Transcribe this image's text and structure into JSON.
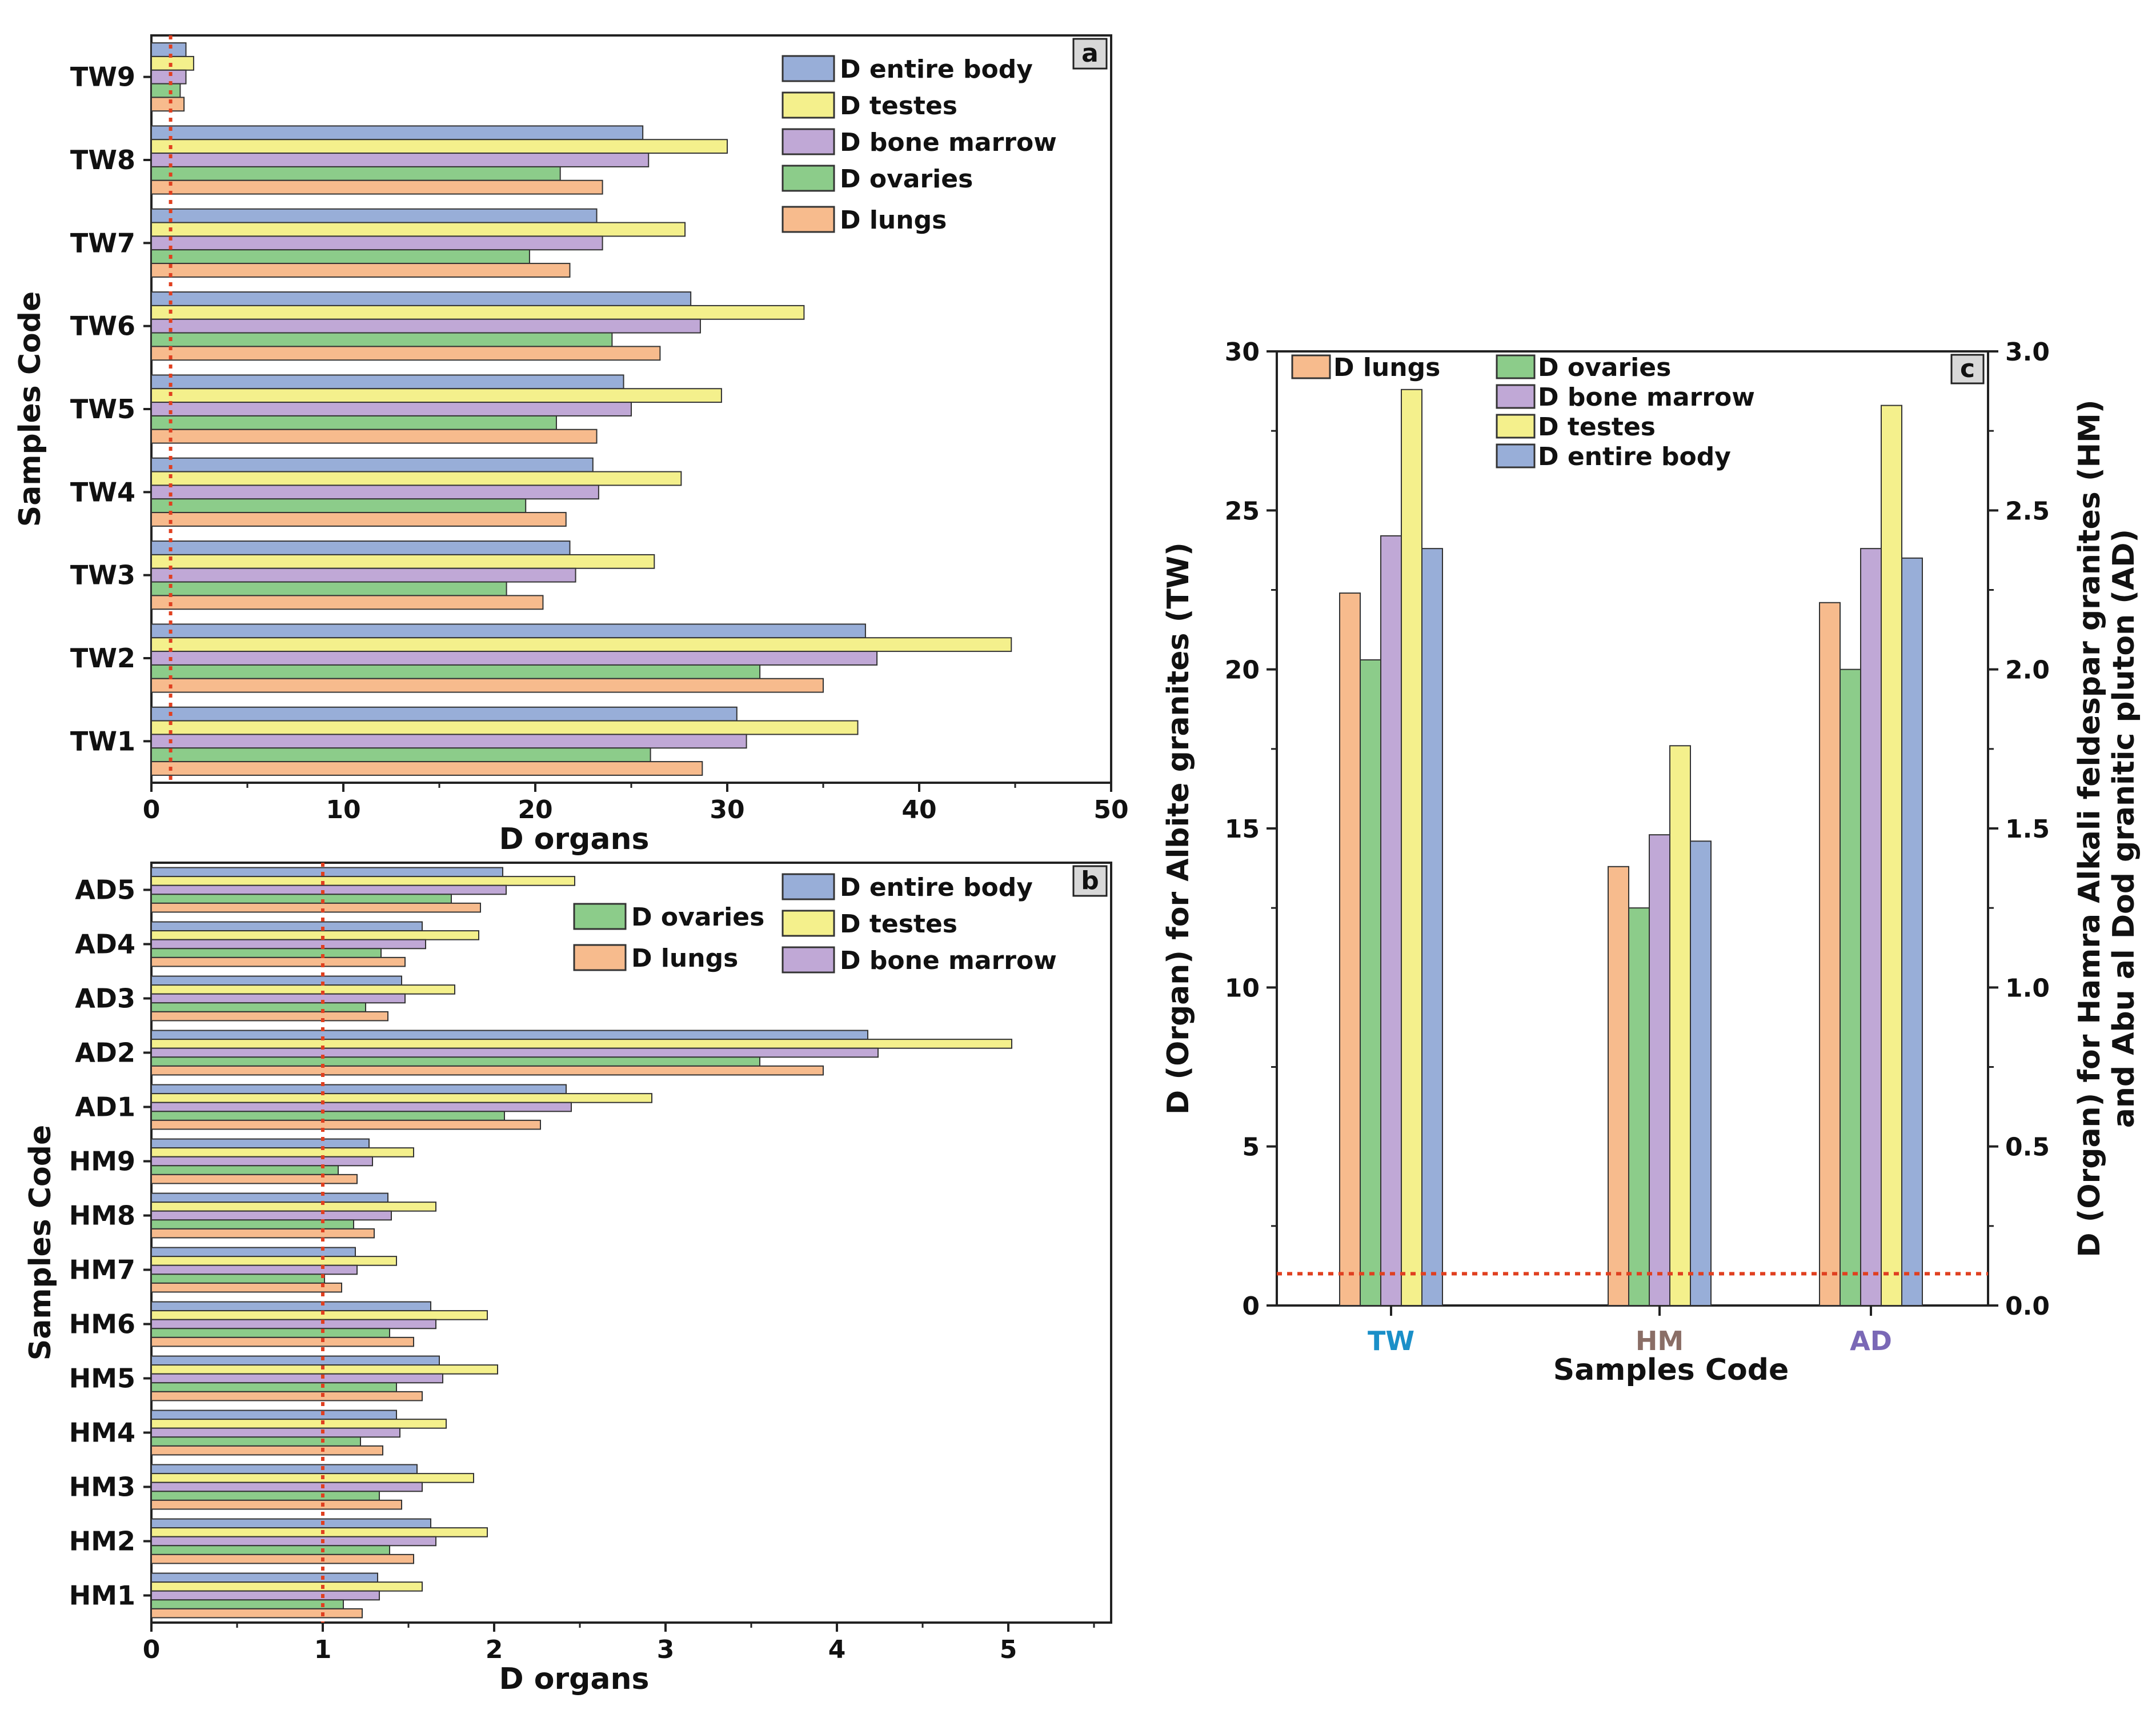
{
  "colors": {
    "D lungs": "#f7bb8d",
    "D ovaries": "#8ccc8a",
    "D bone marrow": "#c0a8d6",
    "D testes": "#f4f08c",
    "D entire body": "#98aed8",
    "threshold": "#e04020",
    "tw_tick": "#1a8fc8",
    "hm_tick": "#8a6e66",
    "ad_tick": "#7a68b6"
  },
  "chart_data": [
    {
      "id": "a",
      "type": "bar",
      "orientation": "horizontal",
      "panel_label": "a",
      "categories": [
        "TW1",
        "TW2",
        "TW3",
        "TW4",
        "TW5",
        "TW6",
        "TW7",
        "TW8",
        "TW9"
      ],
      "series": [
        {
          "name": "D entire body",
          "values": [
            30.5,
            37.2,
            21.8,
            23.0,
            24.6,
            28.1,
            23.2,
            25.6,
            1.8
          ]
        },
        {
          "name": "D testes",
          "values": [
            36.8,
            44.8,
            26.2,
            27.6,
            29.7,
            34.0,
            27.8,
            30.0,
            2.2
          ]
        },
        {
          "name": "D bone marrow",
          "values": [
            31.0,
            37.8,
            22.1,
            23.3,
            25.0,
            28.6,
            23.5,
            25.9,
            1.8
          ]
        },
        {
          "name": "D ovaries",
          "values": [
            26.0,
            31.7,
            18.5,
            19.5,
            21.1,
            24.0,
            19.7,
            21.3,
            1.5
          ]
        },
        {
          "name": "D lungs",
          "values": [
            28.7,
            35.0,
            20.4,
            21.6,
            23.2,
            26.5,
            21.8,
            23.5,
            1.7
          ]
        }
      ],
      "legend": [
        "D entire body",
        "D testes",
        "D bone marrow",
        "D ovaries",
        "D lungs"
      ],
      "xlabel": "D organs",
      "ylabel": "Samples Code",
      "xlim": [
        0,
        50
      ],
      "xticks": [
        0,
        10,
        20,
        30,
        40,
        50
      ],
      "threshold": 1
    },
    {
      "id": "b",
      "type": "bar",
      "orientation": "horizontal",
      "panel_label": "b",
      "categories": [
        "HM1",
        "HM2",
        "HM3",
        "HM4",
        "HM5",
        "HM6",
        "HM7",
        "HM8",
        "HM9",
        "AD1",
        "AD2",
        "AD3",
        "AD4",
        "AD5"
      ],
      "series": [
        {
          "name": "D entire body",
          "values": [
            1.32,
            1.63,
            1.55,
            1.43,
            1.68,
            1.63,
            1.19,
            1.38,
            1.27,
            2.42,
            4.18,
            1.46,
            1.58,
            2.05
          ]
        },
        {
          "name": "D testes",
          "values": [
            1.58,
            1.96,
            1.88,
            1.72,
            2.02,
            1.96,
            1.43,
            1.66,
            1.53,
            2.92,
            5.02,
            1.77,
            1.91,
            2.47
          ]
        },
        {
          "name": "D bone marrow",
          "values": [
            1.33,
            1.66,
            1.58,
            1.45,
            1.7,
            1.66,
            1.2,
            1.4,
            1.29,
            2.45,
            4.24,
            1.48,
            1.6,
            2.07
          ]
        },
        {
          "name": "D ovaries",
          "values": [
            1.12,
            1.39,
            1.33,
            1.22,
            1.43,
            1.39,
            1.01,
            1.18,
            1.09,
            2.06,
            3.55,
            1.25,
            1.34,
            1.75
          ]
        },
        {
          "name": "D lungs",
          "values": [
            1.23,
            1.53,
            1.46,
            1.35,
            1.58,
            1.53,
            1.11,
            1.3,
            1.2,
            2.27,
            3.92,
            1.38,
            1.48,
            1.92
          ]
        }
      ],
      "legend": [
        "D entire body",
        "D ovaries",
        "D testes",
        "D lungs",
        "D bone marrow"
      ],
      "xlabel": "D organs",
      "ylabel": "Samples Code",
      "xlim": [
        0,
        5.6
      ],
      "xticks": [
        0,
        1,
        2,
        3,
        4,
        5
      ],
      "threshold": 1
    },
    {
      "id": "c",
      "type": "bar",
      "orientation": "vertical",
      "panel_label": "c",
      "categories": [
        "TW",
        "HM",
        "AD"
      ],
      "series": [
        {
          "name": "D lungs",
          "values": [
            22.4,
            1.38,
            2.21
          ]
        },
        {
          "name": "D ovaries",
          "values": [
            20.3,
            1.25,
            2.0
          ]
        },
        {
          "name": "D bone marrow",
          "values": [
            24.2,
            1.48,
            2.38
          ]
        },
        {
          "name": "D testes",
          "values": [
            28.8,
            1.76,
            2.83
          ]
        },
        {
          "name": "D entire body",
          "values": [
            23.8,
            1.46,
            2.35
          ]
        }
      ],
      "legend": [
        "D lungs",
        "D ovaries",
        "D bone marrow",
        "D testes",
        "D entire body"
      ],
      "xlabel": "Samples Code",
      "ylabel_left": "D (Organ) for Albite granites (TW)",
      "ylabel_right_line1": "D (Organ) for Hamra Alkali feldespar granites (HM)",
      "ylabel_right_line2": "and  Abu  al Dod granitic pluton (AD)",
      "ylim_left": [
        0,
        30
      ],
      "yticks_left": [
        0,
        5,
        10,
        15,
        20,
        25,
        30
      ],
      "ylim_right": [
        0,
        3
      ],
      "yticks_right": [
        "0.0",
        "0.5",
        "1.0",
        "1.5",
        "2.0",
        "2.5",
        "3.0"
      ],
      "threshold_left": 1
    }
  ]
}
